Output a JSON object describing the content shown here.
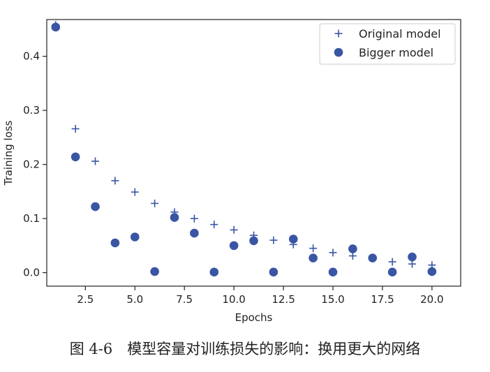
{
  "chart_data": {
    "type": "scatter",
    "title": "",
    "xlabel": "Epochs",
    "ylabel": "Training loss",
    "xlim": [
      0.55,
      21.45
    ],
    "ylim": [
      -0.025,
      0.468
    ],
    "xticks": [
      2.5,
      5.0,
      7.5,
      10.0,
      12.5,
      15.0,
      17.5,
      20.0
    ],
    "xtick_labels": [
      "2.5",
      "5.0",
      "7.5",
      "10.0",
      "12.5",
      "15.0",
      "17.5",
      "20.0"
    ],
    "yticks": [
      0.0,
      0.1,
      0.2,
      0.3,
      0.4
    ],
    "ytick_labels": [
      "0.0",
      "0.1",
      "0.2",
      "0.3",
      "0.4"
    ],
    "grid": false,
    "legend_position": "top-right",
    "series": [
      {
        "name": "Original model",
        "marker": "plus",
        "color": "#3a55a4",
        "x": [
          1,
          2,
          3,
          4,
          5,
          6,
          7,
          8,
          9,
          10,
          11,
          12,
          13,
          14,
          15,
          16,
          17,
          18,
          19,
          20
        ],
        "y": [
          0.458,
          0.266,
          0.206,
          0.17,
          0.149,
          0.128,
          0.112,
          0.1,
          0.089,
          0.079,
          0.069,
          0.06,
          0.052,
          0.045,
          0.037,
          0.031,
          0.026,
          0.02,
          0.016,
          0.014
        ]
      },
      {
        "name": "Bigger model",
        "marker": "circle",
        "color": "#3a55a4",
        "x": [
          1,
          2,
          3,
          4,
          5,
          6,
          7,
          8,
          9,
          10,
          11,
          12,
          13,
          14,
          15,
          16,
          17,
          18,
          19,
          20
        ],
        "y": [
          0.454,
          0.214,
          0.122,
          0.055,
          0.066,
          0.002,
          0.102,
          0.073,
          0.001,
          0.05,
          0.059,
          0.001,
          0.062,
          0.027,
          0.001,
          0.044,
          0.027,
          0.001,
          0.029,
          0.002
        ]
      }
    ]
  },
  "caption": "图 4-6　模型容量对训练损失的影响：换用更大的网络"
}
